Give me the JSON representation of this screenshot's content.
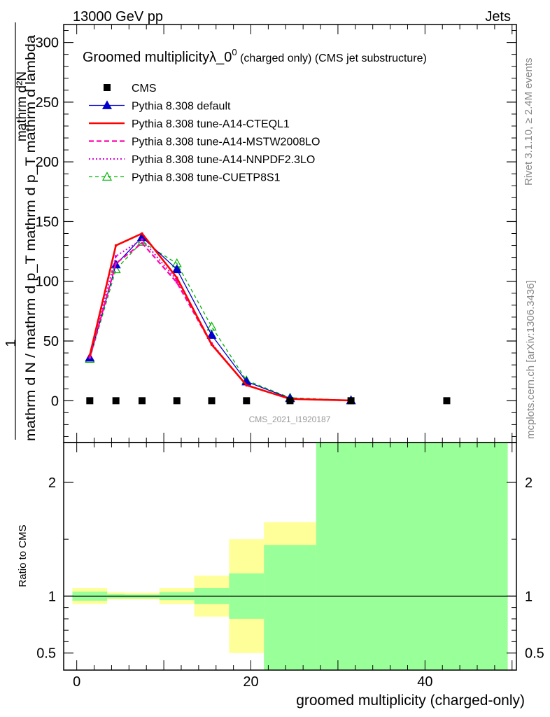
{
  "header": {
    "left": "13000 GeV pp",
    "right": "Jets"
  },
  "side_labels": {
    "rivet": "Rivet 3.1.10, ≥ 2.4M events",
    "mcplots": "mcplots.cern.ch [arXiv:1306.3436]"
  },
  "watermark": "CMS_2021_I1920187",
  "colors": {
    "cms": "#000000",
    "default": "#0000cc",
    "cteql1": "#ff0000",
    "mstw": "#ff00aa",
    "nnpdf": "#dd00dd",
    "cuetp8s1": "#00b400",
    "band_outer": "#ffff99",
    "band_inner": "#99ff99"
  },
  "chart_data": [
    {
      "type": "line",
      "panel": "main",
      "title_main": "Groomed multiplicityλ_0",
      "title_sup": "0",
      "title_tail": " (charged only) (CMS jet substructure)",
      "ylabel_numerator": "mathrm d²N",
      "ylabel_numerator_lead": "1",
      "ylabel_denominator": "mathrm d N / mathrm d p_T mathrm d p_T mathrm d lambda",
      "ylabel_line1": "mathrm d²N",
      "ylabel_line2": "mathrm d N / mathrm d p_T mathrm d p_T mathrm d lambda",
      "xlim": [
        -1.5,
        50.5
      ],
      "ylim": [
        -35,
        315
      ],
      "yticks": [
        0,
        50,
        100,
        150,
        200,
        250,
        300
      ],
      "yticklabels": [
        "0",
        "50",
        "100",
        "150",
        "200",
        "250",
        "300"
      ],
      "legend_position": "top-left",
      "series": [
        {
          "name": "CMS",
          "key": "cms",
          "style": "square",
          "x": [
            1.5,
            4.5,
            7.5,
            11.5,
            15.5,
            19.5,
            24.5,
            31.5,
            42.5
          ],
          "y": [
            0,
            0,
            0,
            0,
            0,
            0,
            0,
            0,
            0
          ]
        },
        {
          "name": "Pythia 8.308 default",
          "key": "default",
          "style": "solid-triangle",
          "x": [
            1.5,
            4.5,
            7.5,
            11.5,
            15.5,
            19.5,
            24.5,
            31.5
          ],
          "y": [
            36,
            114,
            137,
            110,
            55,
            16,
            2,
            0.3
          ]
        },
        {
          "name": "Pythia 8.308 tune-A14-CTEQL1",
          "key": "cteql1",
          "style": "solid-thick",
          "x": [
            1.5,
            4.5,
            7.5,
            11.5,
            15.5,
            19.5,
            24.5,
            31.5
          ],
          "y": [
            38,
            130,
            140,
            103,
            47,
            13,
            1.5,
            0.2
          ]
        },
        {
          "name": "Pythia 8.308 tune-A14-MSTW2008LO",
          "key": "mstw",
          "style": "dashed",
          "x": [
            1.5,
            4.5,
            7.5,
            11.5,
            15.5,
            19.5,
            24.5,
            31.5
          ],
          "y": [
            36,
            115,
            132,
            99,
            47,
            13,
            1.5,
            0.2
          ]
        },
        {
          "name": "Pythia 8.308 tune-A14-NNPDF2.3LO",
          "key": "nnpdf",
          "style": "dotted",
          "x": [
            1.5,
            4.5,
            7.5,
            11.5,
            15.5,
            19.5,
            24.5,
            31.5
          ],
          "y": [
            37,
            121,
            135,
            101,
            48,
            13,
            1.5,
            0.2
          ]
        },
        {
          "name": "Pythia 8.308 tune-CUETP8S1",
          "key": "cuetp8s1",
          "style": "dashed-open-triangle",
          "x": [
            1.5,
            4.5,
            7.5,
            11.5,
            15.5,
            19.5,
            24.5,
            31.5
          ],
          "y": [
            35,
            110,
            133,
            115,
            62,
            17,
            2.5,
            0.3
          ]
        }
      ]
    },
    {
      "type": "area",
      "panel": "ratio",
      "ylabel": "Ratio to CMS",
      "xlabel": "groomed multiplicity (charged-only)",
      "xlim": [
        -1.5,
        50.5
      ],
      "ylim": [
        0.35,
        2.35
      ],
      "yticks": [
        0.5,
        1,
        2
      ],
      "yticklabels": [
        "0.5",
        "1",
        "2"
      ],
      "xticks": [
        0,
        20,
        40
      ],
      "xticklabels": [
        "0",
        "20",
        "40"
      ],
      "bins": [
        {
          "lo": -0.5,
          "hi": 3.5,
          "outer": [
            0.93,
            1.07
          ],
          "inner": [
            0.96,
            1.04
          ]
        },
        {
          "lo": 3.5,
          "hi": 5.5,
          "outer": [
            0.97,
            1.035
          ],
          "inner": [
            0.98,
            1.02
          ]
        },
        {
          "lo": 5.5,
          "hi": 9.5,
          "outer": [
            0.97,
            1.03
          ],
          "inner": [
            0.98,
            1.015
          ]
        },
        {
          "lo": 9.5,
          "hi": 13.5,
          "outer": [
            0.93,
            1.07
          ],
          "inner": [
            0.965,
            1.035
          ]
        },
        {
          "lo": 13.5,
          "hi": 17.5,
          "outer": [
            0.82,
            1.18
          ],
          "inner": [
            0.93,
            1.07
          ]
        },
        {
          "lo": 17.5,
          "hi": 21.5,
          "outer": [
            0.5,
            1.5
          ],
          "inner": [
            0.8,
            1.2
          ]
        },
        {
          "lo": 21.5,
          "hi": 27.5,
          "outer": [
            0.35,
            1.65
          ],
          "inner": [
            0.35,
            1.45
          ]
        },
        {
          "lo": 27.5,
          "hi": 49.5,
          "outer": [
            0.35,
            2.35
          ],
          "inner": [
            0.35,
            2.35
          ]
        }
      ],
      "reference": 1
    }
  ]
}
